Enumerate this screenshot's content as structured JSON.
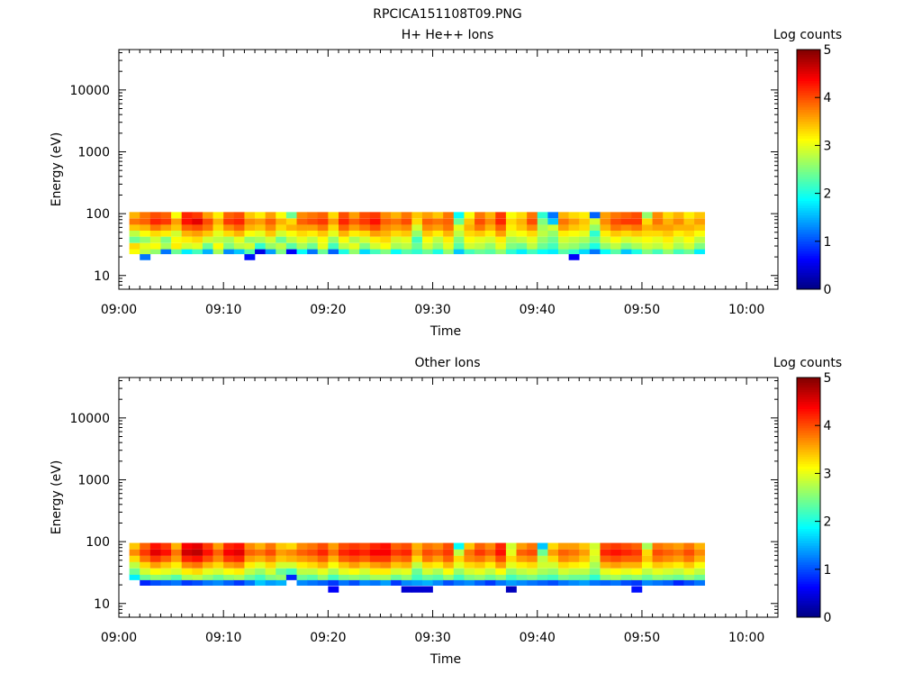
{
  "figure": {
    "title": "RPCICA151108T09.PNG"
  },
  "panels": [
    {
      "title": "H+ He++ Ions",
      "xlabel": "Time",
      "ylabel": "Energy (eV)",
      "colorbar_label": "Log counts",
      "colorbar_ticks": [
        "0",
        "1",
        "2",
        "3",
        "4",
        "5"
      ],
      "x_ticks": [
        "09:00",
        "09:10",
        "09:20",
        "09:30",
        "09:40",
        "09:50",
        "10:00"
      ],
      "y_ticks": [
        "10",
        "100",
        "1000",
        "10000"
      ]
    },
    {
      "title": "Other Ions",
      "xlabel": "Time",
      "ylabel": "Energy (eV)",
      "colorbar_label": "Log counts",
      "colorbar_ticks": [
        "0",
        "1",
        "2",
        "3",
        "4",
        "5"
      ],
      "x_ticks": [
        "09:00",
        "09:10",
        "09:20",
        "09:30",
        "09:40",
        "09:50",
        "10:00"
      ],
      "y_ticks": [
        "10",
        "100",
        "1000",
        "10000"
      ]
    }
  ],
  "chart_data": [
    {
      "type": "heatmap",
      "title": "H+ He++ Ions",
      "xlabel": "Time",
      "ylabel": "Energy (eV)",
      "x_unit": "minutes after 09:00",
      "xlim": [
        "09:00",
        "10:03"
      ],
      "ylim": [
        6,
        45000
      ],
      "y_scale": "log",
      "colorbar": {
        "label": "Log counts",
        "range": [
          0,
          5
        ],
        "colormap": "jet"
      },
      "x_start": 1,
      "x_step": 1,
      "energy_bins": [
        20,
        25,
        30,
        38,
        48,
        60,
        75,
        95
      ],
      "log_counts": [
        [
          null,
          3.1,
          3.3,
          2.4,
          2.8,
          3.4,
          3.8,
          3.5
        ],
        [
          1.2,
          2.8,
          3.0,
          2.6,
          3.1,
          3.5,
          3.9,
          3.8
        ],
        [
          null,
          2.6,
          3.1,
          2.9,
          3.3,
          3.8,
          4.2,
          4.0
        ],
        [
          null,
          1.2,
          2.7,
          2.5,
          3.2,
          3.6,
          4.1,
          3.9
        ],
        [
          null,
          2.4,
          3.2,
          3.1,
          2.9,
          3.4,
          3.6,
          3.1
        ],
        [
          null,
          1.8,
          2.9,
          3.2,
          3.5,
          3.9,
          4.3,
          4.2
        ],
        [
          null,
          2.2,
          3.0,
          3.3,
          3.6,
          4.0,
          4.5,
          4.1
        ],
        [
          null,
          1.5,
          2.4,
          2.9,
          3.4,
          3.8,
          4.0,
          3.6
        ],
        [
          null,
          2.7,
          3.1,
          2.8,
          3.0,
          3.3,
          3.5,
          3.2
        ],
        [
          null,
          1.3,
          2.5,
          2.7,
          3.3,
          3.7,
          4.1,
          3.9
        ],
        [
          null,
          1.6,
          2.8,
          3.0,
          3.5,
          3.9,
          4.2,
          4.0
        ],
        [
          0.7,
          2.3,
          2.9,
          2.6,
          3.1,
          3.5,
          3.7,
          3.4
        ],
        [
          null,
          0.5,
          2.1,
          2.7,
          3.0,
          3.4,
          3.6,
          3.2
        ],
        [
          null,
          1.4,
          2.6,
          2.9,
          3.4,
          3.7,
          3.9,
          3.6
        ],
        [
          null,
          2.5,
          2.8,
          2.4,
          2.9,
          3.3,
          3.5,
          3.1
        ],
        [
          null,
          0.6,
          2.3,
          2.8,
          3.1,
          3.5,
          3.3,
          2.4
        ],
        [
          null,
          1.9,
          2.7,
          3.0,
          3.3,
          3.6,
          3.9,
          3.7
        ],
        [
          null,
          1.2,
          2.4,
          2.8,
          3.2,
          3.6,
          4.0,
          3.8
        ],
        [
          null,
          2.4,
          3.0,
          3.1,
          3.4,
          3.8,
          4.1,
          3.9
        ],
        [
          null,
          1.1,
          2.2,
          2.6,
          3.0,
          3.3,
          3.6,
          3.3
        ],
        [
          null,
          2.0,
          2.8,
          3.1,
          3.5,
          3.9,
          4.2,
          4.0
        ],
        [
          null,
          2.6,
          3.0,
          2.7,
          3.2,
          3.6,
          3.9,
          3.6
        ],
        [
          null,
          1.7,
          2.5,
          2.9,
          3.3,
          3.8,
          4.1,
          4.0
        ],
        [
          null,
          2.2,
          2.9,
          3.2,
          3.6,
          4.0,
          4.3,
          4.1
        ],
        [
          null,
          2.5,
          3.1,
          3.3,
          3.5,
          3.7,
          3.9,
          3.7
        ],
        [
          null,
          1.9,
          2.7,
          2.9,
          3.3,
          3.6,
          3.8,
          3.5
        ],
        [
          null,
          2.3,
          2.8,
          3.0,
          3.4,
          3.7,
          4.0,
          3.8
        ],
        [
          null,
          2.1,
          2.4,
          2.2,
          2.6,
          2.9,
          3.3,
          3.4
        ],
        [
          null,
          2.4,
          2.9,
          3.1,
          3.4,
          3.7,
          3.9,
          3.6
        ],
        [
          null,
          2.0,
          2.6,
          2.8,
          3.2,
          3.6,
          3.8,
          3.4
        ],
        [
          null,
          2.6,
          3.0,
          3.2,
          3.5,
          3.8,
          3.9,
          3.8
        ],
        [
          null,
          1.6,
          2.3,
          2.5,
          2.8,
          3.0,
          2.4,
          1.9
        ],
        [
          null,
          2.2,
          2.9,
          3.1,
          3.3,
          3.5,
          3.4,
          3.1
        ],
        [
          null,
          2.4,
          2.8,
          3.0,
          3.4,
          3.8,
          4.0,
          3.8
        ],
        [
          null,
          2.3,
          2.6,
          2.9,
          3.2,
          3.5,
          3.7,
          3.5
        ],
        [
          null,
          2.6,
          3.0,
          3.2,
          3.6,
          3.9,
          4.2,
          4.1
        ],
        [
          null,
          2.1,
          2.5,
          2.7,
          3.0,
          3.2,
          3.3,
          3.1
        ],
        [
          null,
          1.8,
          2.4,
          2.8,
          3.1,
          3.4,
          3.5,
          3.3
        ],
        [
          null,
          2.2,
          2.8,
          3.0,
          3.3,
          3.7,
          4.0,
          3.8
        ],
        [
          null,
          1.9,
          2.4,
          2.6,
          2.8,
          2.7,
          2.5,
          2.1
        ],
        [
          null,
          1.8,
          2.2,
          2.4,
          2.6,
          2.9,
          1.6,
          1.2
        ],
        [
          null,
          2.3,
          2.7,
          2.9,
          3.2,
          3.6,
          3.8,
          3.5
        ],
        [
          0.6,
          2.1,
          2.6,
          2.8,
          3.1,
          3.4,
          3.6,
          3.3
        ],
        [
          null,
          1.7,
          2.4,
          2.7,
          3.0,
          3.3,
          3.4,
          3.2
        ],
        [
          null,
          1.2,
          2.0,
          2.4,
          2.1,
          2.6,
          2.9,
          1.1
        ],
        [
          null,
          1.9,
          2.6,
          2.9,
          3.2,
          3.5,
          3.7,
          3.6
        ],
        [
          null,
          2.3,
          2.8,
          3.1,
          3.4,
          3.8,
          4.0,
          3.8
        ],
        [
          null,
          1.6,
          2.5,
          2.9,
          3.3,
          3.7,
          4.1,
          3.9
        ],
        [
          null,
          2.0,
          2.7,
          3.0,
          3.4,
          3.8,
          4.1,
          4.0
        ],
        [
          null,
          2.5,
          2.9,
          3.1,
          3.3,
          3.5,
          3.3,
          2.6
        ],
        [
          null,
          2.2,
          2.8,
          3.0,
          3.3,
          3.6,
          3.8,
          3.7
        ],
        [
          null,
          2.6,
          3.0,
          3.2,
          3.4,
          3.6,
          3.5,
          3.3
        ],
        [
          null,
          2.2,
          2.7,
          2.9,
          3.2,
          3.5,
          3.7,
          3.5
        ],
        [
          null,
          2.4,
          2.9,
          3.1,
          3.3,
          3.5,
          3.4,
          3.2
        ],
        [
          null,
          1.8,
          2.5,
          2.8,
          3.1,
          3.4,
          3.6,
          3.4
        ]
      ]
    },
    {
      "type": "heatmap",
      "title": "Other Ions",
      "xlabel": "Time",
      "ylabel": "Energy (eV)",
      "x_unit": "minutes after 09:00",
      "xlim": [
        "09:00",
        "10:03"
      ],
      "ylim": [
        6,
        45000
      ],
      "y_scale": "log",
      "colorbar": {
        "label": "Log counts",
        "range": [
          0,
          5
        ],
        "colormap": "jet"
      },
      "x_start": 1,
      "x_step": 1,
      "energy_bins": [
        17,
        22,
        27,
        33,
        42,
        53,
        67,
        85
      ],
      "log_counts": [
        [
          null,
          null,
          1.8,
          2.4,
          2.8,
          3.3,
          3.7,
          3.4
        ],
        [
          null,
          0.8,
          2.4,
          2.9,
          3.3,
          3.8,
          4.1,
          3.9
        ],
        [
          null,
          1.0,
          2.6,
          3.1,
          3.6,
          4.1,
          4.5,
          4.3
        ],
        [
          null,
          1.1,
          2.5,
          3.0,
          3.4,
          3.9,
          4.3,
          4.1
        ],
        [
          null,
          1.2,
          2.3,
          2.9,
          3.2,
          3.6,
          3.8,
          3.5
        ],
        [
          null,
          0.9,
          2.7,
          3.2,
          3.7,
          4.2,
          4.6,
          4.4
        ],
        [
          null,
          1.0,
          2.8,
          3.3,
          3.8,
          4.3,
          4.7,
          4.5
        ],
        [
          null,
          1.2,
          2.6,
          3.0,
          3.5,
          4.0,
          4.3,
          4.1
        ],
        [
          null,
          1.3,
          2.4,
          2.9,
          3.3,
          3.7,
          3.9,
          3.6
        ],
        [
          null,
          1.1,
          2.6,
          3.1,
          3.6,
          4.1,
          4.4,
          4.2
        ],
        [
          null,
          0.9,
          2.7,
          3.2,
          3.7,
          4.2,
          4.5,
          4.3
        ],
        [
          null,
          1.2,
          2.4,
          2.8,
          3.2,
          3.6,
          3.9,
          3.7
        ],
        [
          null,
          1.6,
          2.2,
          2.6,
          3.0,
          3.5,
          3.8,
          3.5
        ],
        [
          null,
          1.4,
          2.5,
          2.9,
          3.3,
          3.7,
          4.0,
          3.8
        ],
        [
          null,
          1.5,
          2.6,
          2.4,
          2.9,
          3.4,
          3.6,
          3.4
        ],
        [
          null,
          null,
          0.8,
          2.2,
          2.9,
          3.5,
          3.7,
          3.3
        ],
        [
          null,
          1.3,
          2.4,
          2.8,
          3.2,
          3.6,
          3.9,
          3.7
        ],
        [
          null,
          1.2,
          2.3,
          2.8,
          3.3,
          3.7,
          4.0,
          3.8
        ],
        [
          null,
          1.1,
          2.6,
          3.0,
          3.5,
          3.9,
          4.2,
          4.0
        ],
        [
          0.6,
          0.9,
          2.2,
          2.7,
          3.1,
          3.5,
          3.8,
          3.6
        ],
        [
          null,
          1.2,
          2.5,
          3.0,
          3.4,
          3.9,
          4.2,
          4.0
        ],
        [
          null,
          1.0,
          2.6,
          3.1,
          3.6,
          4.0,
          4.3,
          4.1
        ],
        [
          null,
          1.3,
          2.5,
          2.9,
          3.4,
          3.9,
          4.2,
          4.0
        ],
        [
          null,
          1.2,
          2.7,
          3.2,
          3.6,
          4.1,
          4.4,
          4.2
        ],
        [
          null,
          1.4,
          2.7,
          3.2,
          3.7,
          4.1,
          4.4,
          4.3
        ],
        [
          null,
          0.9,
          2.4,
          2.9,
          3.4,
          3.8,
          4.1,
          3.9
        ],
        [
          0.4,
          1.3,
          2.6,
          3.0,
          3.5,
          3.9,
          4.2,
          4.0
        ],
        [
          0.4,
          1.4,
          2.2,
          2.4,
          2.8,
          3.3,
          3.6,
          3.5
        ],
        [
          0.4,
          1.5,
          2.4,
          2.9,
          3.3,
          3.8,
          4.0,
          3.8
        ],
        [
          null,
          1.3,
          2.3,
          2.7,
          3.2,
          3.6,
          3.9,
          3.7
        ],
        [
          null,
          1.0,
          2.6,
          3.1,
          3.5,
          3.9,
          4.1,
          4.0
        ],
        [
          null,
          1.2,
          2.2,
          2.6,
          3.0,
          3.3,
          2.8,
          1.9
        ],
        [
          null,
          1.3,
          2.5,
          2.9,
          3.3,
          3.7,
          3.8,
          3.4
        ],
        [
          null,
          1.1,
          2.6,
          3.0,
          3.4,
          3.8,
          4.1,
          3.9
        ],
        [
          null,
          0.9,
          2.4,
          2.8,
          3.2,
          3.6,
          3.9,
          3.7
        ],
        [
          null,
          1.2,
          2.6,
          3.1,
          3.6,
          4.0,
          4.3,
          4.2
        ],
        [
          0.3,
          1.4,
          2.2,
          2.6,
          3.0,
          3.3,
          3.0,
          2.9
        ],
        [
          null,
          1.3,
          2.4,
          2.8,
          3.2,
          3.6,
          3.9,
          3.6
        ],
        [
          null,
          1.2,
          2.5,
          2.9,
          3.3,
          3.7,
          4.0,
          3.8
        ],
        [
          null,
          1.1,
          2.3,
          2.7,
          2.9,
          2.8,
          2.4,
          1.6
        ],
        [
          null,
          1.0,
          2.2,
          2.6,
          2.9,
          3.3,
          3.6,
          3.3
        ],
        [
          null,
          1.2,
          2.5,
          2.9,
          3.3,
          3.7,
          3.9,
          3.6
        ],
        [
          null,
          1.3,
          2.4,
          2.8,
          3.2,
          3.6,
          3.8,
          3.6
        ],
        [
          null,
          1.4,
          2.4,
          2.8,
          3.1,
          3.4,
          3.6,
          3.4
        ],
        [
          null,
          1.2,
          2.1,
          2.5,
          2.7,
          2.9,
          3.0,
          2.9
        ],
        [
          null,
          1.1,
          2.6,
          3.0,
          3.5,
          3.9,
          4.2,
          4.0
        ],
        [
          null,
          1.2,
          2.7,
          3.1,
          3.6,
          4.0,
          4.3,
          4.1
        ],
        [
          null,
          1.0,
          2.5,
          3.0,
          3.5,
          3.9,
          4.2,
          4.0
        ],
        [
          0.7,
          0.9,
          2.6,
          3.1,
          3.5,
          3.9,
          4.1,
          3.9
        ],
        [
          null,
          1.3,
          2.4,
          2.8,
          3.1,
          3.4,
          3.3,
          2.7
        ],
        [
          null,
          1.2,
          2.6,
          3.0,
          3.4,
          3.8,
          4.0,
          3.8
        ],
        [
          null,
          1.1,
          2.5,
          2.9,
          3.3,
          3.7,
          3.9,
          3.7
        ],
        [
          null,
          0.8,
          2.4,
          2.8,
          3.2,
          3.6,
          3.8,
          3.6
        ],
        [
          null,
          1.0,
          2.6,
          3.0,
          3.4,
          3.8,
          4.0,
          3.8
        ],
        [
          null,
          1.2,
          2.4,
          2.8,
          3.1,
          3.5,
          3.7,
          3.5
        ]
      ]
    }
  ]
}
